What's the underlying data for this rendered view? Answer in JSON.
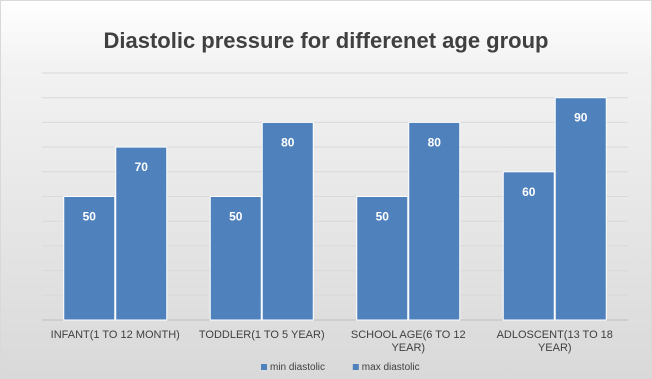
{
  "chart_data": {
    "type": "bar",
    "title": "Diastolic pressure for differenet age group",
    "categories": [
      [
        "INFANT(1 TO 12 MONTH)"
      ],
      [
        "TODDLER(1 TO 5 YEAR)"
      ],
      [
        "SCHOOL AGE(6 TO 12",
        "YEAR)"
      ],
      [
        "ADLOSCENT(13 TO 18",
        "YEAR)"
      ]
    ],
    "series": [
      {
        "name": "min diastolic",
        "values": [
          50,
          50,
          50,
          60
        ],
        "color": "#4f81bd"
      },
      {
        "name": "max diastolic",
        "values": [
          70,
          80,
          80,
          90
        ],
        "color": "#4f81bd"
      }
    ],
    "ylim": [
      0,
      100
    ],
    "gridlines": true,
    "data_labels": true,
    "legend": "bottom"
  }
}
